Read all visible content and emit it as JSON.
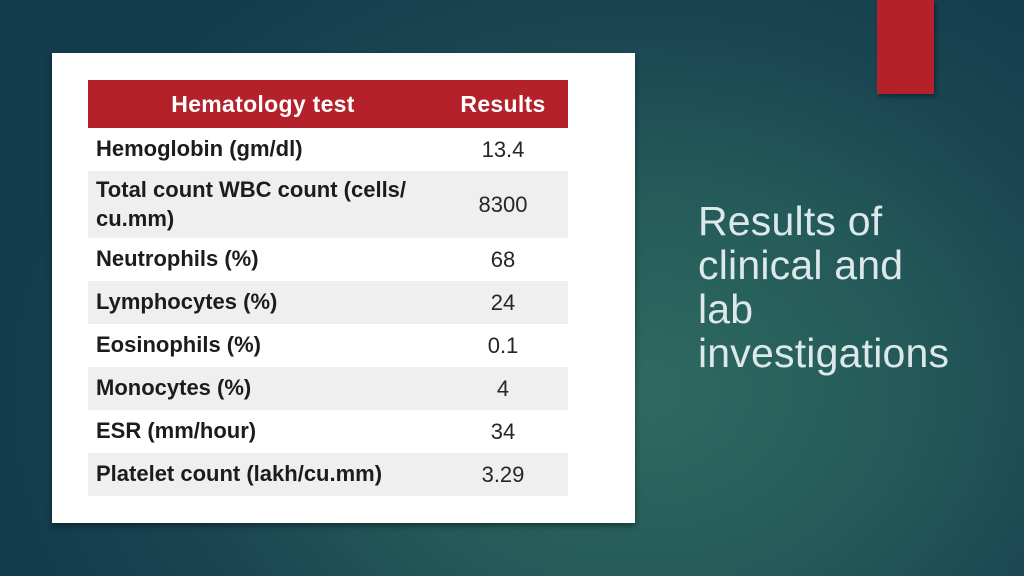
{
  "colors": {
    "accent_red": "#b5212a",
    "header_red": "#b5212a",
    "row_stripe": "#efeff0",
    "bg_center": "#2f6a60",
    "bg_edge": "#133c4c",
    "title_text": "#dde9e9",
    "header_text": "#ffffff",
    "body_text": "#1c1c1c"
  },
  "title": {
    "text": "Results of clinical and lab investigations",
    "display_text": "Results of\nclinical and\nlab\ninvestigations"
  },
  "table": {
    "headers": [
      "Hematology test",
      "Results"
    ],
    "rows": [
      {
        "label": "Hemoglobin (gm/dl)",
        "value": "13.4"
      },
      {
        "label": "Total count WBC count (cells/ cu.mm)",
        "value": "8300"
      },
      {
        "label": "Neutrophils (%)",
        "value": "68"
      },
      {
        "label": "Lymphocytes (%)",
        "value": "24"
      },
      {
        "label": "Eosinophils (%)",
        "value": "0.1"
      },
      {
        "label": "Monocytes (%)",
        "value": "4"
      },
      {
        "label": "ESR (mm/hour)",
        "value": "34"
      },
      {
        "label": "Platelet count (lakh/cu.mm)",
        "value": "3.29"
      }
    ]
  }
}
